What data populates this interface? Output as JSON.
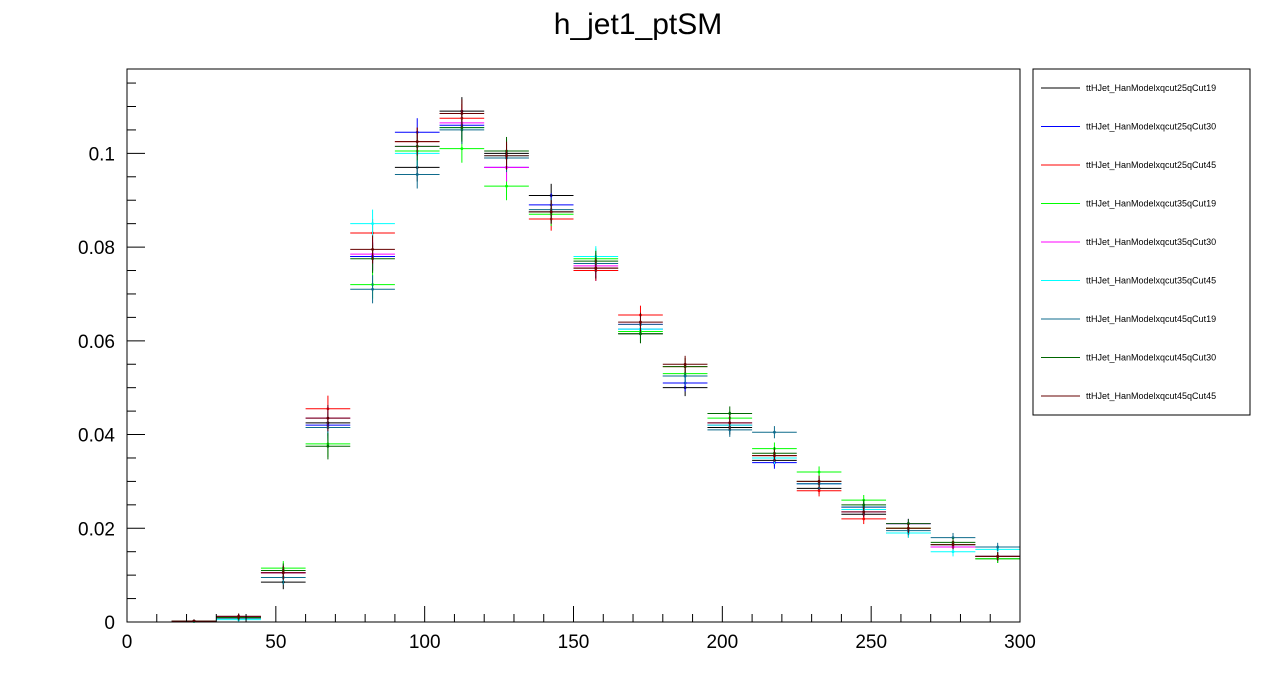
{
  "chart_data": {
    "type": "scatter",
    "title": "h_jet1_ptSM",
    "xlabel": "",
    "ylabel": "",
    "xlim": [
      0,
      300
    ],
    "ylim": [
      0,
      0.118
    ],
    "x_ticks": [
      0,
      50,
      100,
      150,
      200,
      250,
      300
    ],
    "x_tick_labels": [
      "0",
      "50",
      "100",
      "150",
      "200",
      "250",
      "300"
    ],
    "y_ticks": [
      0,
      0.02,
      0.04,
      0.06,
      0.08,
      0.1
    ],
    "y_tick_labels": [
      "0",
      "0.02",
      "0.04",
      "0.06",
      "0.08",
      "0.1"
    ],
    "bin_width": 15,
    "x": [
      22.5,
      37.5,
      52.5,
      67.5,
      82.5,
      97.5,
      112.5,
      127.5,
      142.5,
      157.5,
      172.5,
      187.5,
      202.5,
      217.5,
      232.5,
      247.5,
      262.5,
      277.5,
      292.5
    ],
    "legend_position": "right",
    "grid": false,
    "series": [
      {
        "name": "ttHJet_HanModelxqcut25qCut19",
        "color": "#000000",
        "values": [
          0.0002,
          0.0012,
          0.0085,
          0.0425,
          0.078,
          0.097,
          0.109,
          0.1,
          0.091,
          0.0755,
          0.0615,
          0.05,
          0.0415,
          0.0345,
          0.0285,
          0.023,
          0.019,
          0.0165,
          0.0135
        ],
        "errors": [
          0.0002,
          0.0006,
          0.0015,
          0.0028,
          0.003,
          0.003,
          0.003,
          0.003,
          0.0025,
          0.0022,
          0.002,
          0.0018,
          0.0015,
          0.0013,
          0.0012,
          0.0011,
          0.001,
          0.001,
          0.0009
        ]
      },
      {
        "name": "ttHJet_HanModelxqcut25qCut30",
        "color": "#0000ff",
        "values": [
          0.0002,
          0.0011,
          0.0105,
          0.042,
          0.078,
          0.1045,
          0.106,
          0.097,
          0.089,
          0.075,
          0.0625,
          0.051,
          0.042,
          0.034,
          0.0295,
          0.0245,
          0.021,
          0.0165,
          0.014
        ],
        "errors": [
          0.0002,
          0.0006,
          0.0015,
          0.0028,
          0.003,
          0.003,
          0.003,
          0.003,
          0.0025,
          0.0022,
          0.002,
          0.0018,
          0.0015,
          0.0013,
          0.0012,
          0.0011,
          0.001,
          0.001,
          0.0009
        ]
      },
      {
        "name": "ttHJet_HanModelxqcut25qCut45",
        "color": "#ff0000",
        "values": [
          0.0002,
          0.0009,
          0.0105,
          0.0455,
          0.083,
          0.1025,
          0.1075,
          0.099,
          0.086,
          0.075,
          0.0655,
          0.0545,
          0.042,
          0.0355,
          0.028,
          0.022,
          0.02,
          0.016,
          0.014
        ],
        "errors": [
          0.0002,
          0.0006,
          0.0015,
          0.0028,
          0.003,
          0.003,
          0.003,
          0.003,
          0.0025,
          0.0022,
          0.002,
          0.0018,
          0.0015,
          0.0013,
          0.0012,
          0.0011,
          0.001,
          0.001,
          0.0009
        ]
      },
      {
        "name": "ttHJet_HanModelxqcut35qCut19",
        "color": "#00ff00",
        "values": [
          0.0001,
          0.001,
          0.0115,
          0.038,
          0.072,
          0.1005,
          0.101,
          0.093,
          0.087,
          0.0775,
          0.062,
          0.053,
          0.0435,
          0.037,
          0.032,
          0.026,
          0.02,
          0.0165,
          0.0135
        ],
        "errors": [
          0.0002,
          0.0006,
          0.0015,
          0.0028,
          0.003,
          0.003,
          0.003,
          0.003,
          0.0025,
          0.0022,
          0.002,
          0.0018,
          0.0015,
          0.0013,
          0.0012,
          0.0011,
          0.001,
          0.001,
          0.0009
        ]
      },
      {
        "name": "ttHJet_HanModelxqcut35qCut30",
        "color": "#ff00ff",
        "values": [
          0.0002,
          0.0011,
          0.0105,
          0.0435,
          0.0785,
          0.1015,
          0.1065,
          0.097,
          0.0875,
          0.076,
          0.0635,
          0.0525,
          0.0425,
          0.035,
          0.0295,
          0.0235,
          0.021,
          0.016,
          0.014
        ],
        "errors": [
          0.0002,
          0.0006,
          0.0015,
          0.0028,
          0.003,
          0.003,
          0.003,
          0.003,
          0.0025,
          0.0022,
          0.002,
          0.0018,
          0.0015,
          0.0013,
          0.0012,
          0.0011,
          0.001,
          0.001,
          0.0009
        ]
      },
      {
        "name": "ttHJet_HanModelxqcut35qCut45",
        "color": "#00ffff",
        "values": [
          0.0001,
          0.0005,
          0.0095,
          0.0415,
          0.085,
          0.1,
          0.1055,
          0.0995,
          0.0875,
          0.078,
          0.0625,
          0.0525,
          0.042,
          0.035,
          0.0295,
          0.024,
          0.019,
          0.015,
          0.0155
        ],
        "errors": [
          0.0002,
          0.0006,
          0.0015,
          0.0028,
          0.003,
          0.003,
          0.003,
          0.003,
          0.0025,
          0.0022,
          0.002,
          0.0018,
          0.0015,
          0.0013,
          0.0012,
          0.0011,
          0.001,
          0.001,
          0.0009
        ]
      },
      {
        "name": "ttHJet_HanModelxqcut45qCut19",
        "color": "#0f6b8c",
        "values": [
          0.0002,
          0.0008,
          0.0095,
          0.0415,
          0.071,
          0.0955,
          0.105,
          0.099,
          0.088,
          0.0765,
          0.0635,
          0.0525,
          0.041,
          0.0405,
          0.0295,
          0.0245,
          0.0195,
          0.018,
          0.016
        ],
        "errors": [
          0.0002,
          0.0006,
          0.0015,
          0.0028,
          0.003,
          0.003,
          0.003,
          0.003,
          0.0025,
          0.0022,
          0.002,
          0.0018,
          0.0015,
          0.0013,
          0.0012,
          0.0011,
          0.001,
          0.001,
          0.0009
        ]
      },
      {
        "name": "ttHJet_HanModelxqcut45qCut30",
        "color": "#006600",
        "values": [
          0.0002,
          0.001,
          0.011,
          0.0375,
          0.0775,
          0.1015,
          0.1055,
          0.1005,
          0.0875,
          0.077,
          0.0615,
          0.0545,
          0.0445,
          0.036,
          0.03,
          0.025,
          0.021,
          0.017,
          0.014
        ],
        "errors": [
          0.0002,
          0.0006,
          0.0015,
          0.0028,
          0.003,
          0.003,
          0.003,
          0.003,
          0.0025,
          0.0022,
          0.002,
          0.0018,
          0.0015,
          0.0013,
          0.0012,
          0.0011,
          0.001,
          0.001,
          0.0009
        ]
      },
      {
        "name": "ttHJet_HanModelxqcut45qCut45",
        "color": "#660000",
        "values": [
          0.0002,
          0.0012,
          0.0105,
          0.0435,
          0.0795,
          0.1025,
          0.1085,
          0.0995,
          0.0875,
          0.0755,
          0.064,
          0.055,
          0.0425,
          0.0355,
          0.03,
          0.0235,
          0.02,
          0.0165,
          0.014
        ],
        "errors": [
          0.0002,
          0.0006,
          0.0015,
          0.0028,
          0.003,
          0.003,
          0.003,
          0.003,
          0.0025,
          0.0022,
          0.002,
          0.0018,
          0.0015,
          0.0013,
          0.0012,
          0.0011,
          0.001,
          0.001,
          0.0009
        ]
      }
    ]
  }
}
